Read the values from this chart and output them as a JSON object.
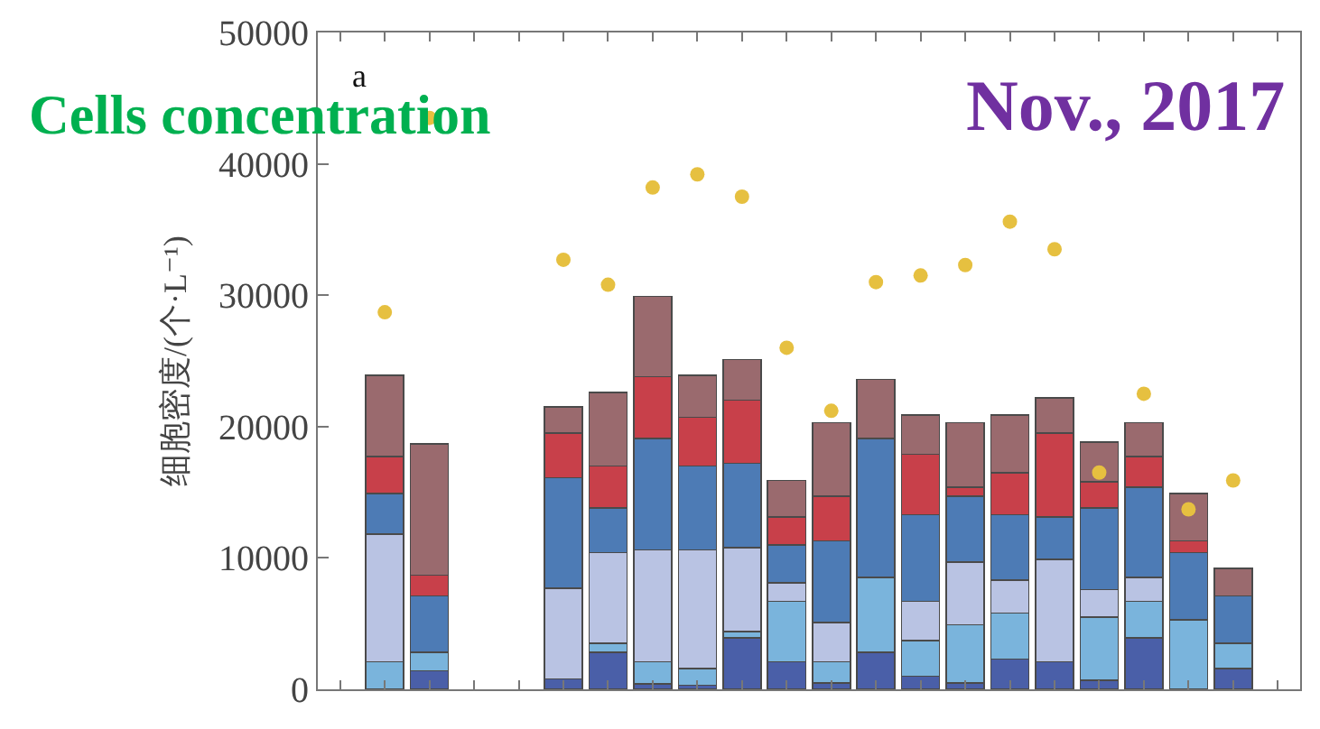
{
  "chart_data": {
    "type": "bar",
    "stacked": true,
    "ylabel": "细胞密度/(个·L⁻¹)",
    "annotations": [
      "a",
      "Cells concentration",
      "Nov., 2017"
    ],
    "categories": [
      null,
      null,
      null,
      null,
      null,
      null,
      null,
      null,
      null,
      null,
      null,
      null,
      null,
      null,
      null,
      null,
      null,
      null,
      null,
      null,
      null,
      null
    ],
    "ylim": [
      0,
      50000
    ],
    "yticks": [
      0,
      10000,
      20000,
      30000,
      40000,
      50000
    ],
    "tick_labels": "y",
    "series": [
      {
        "color": "#4a5fa8",
        "values": [
          null,
          null,
          1400,
          null,
          null,
          800,
          2800,
          400,
          300,
          3900,
          2100,
          500,
          2800,
          1000,
          500,
          2300,
          2100,
          700,
          3900,
          null,
          1600,
          null
        ]
      },
      {
        "color": "#7ab4dc",
        "values": [
          null,
          2100,
          1400,
          null,
          null,
          null,
          700,
          1700,
          1300,
          500,
          4600,
          1600,
          5700,
          2700,
          4400,
          3500,
          null,
          4800,
          2800,
          5300,
          1900,
          null
        ]
      },
      {
        "color": "#b9c3e3",
        "values": [
          null,
          9700,
          null,
          null,
          null,
          6900,
          6900,
          8500,
          9000,
          6400,
          1400,
          3000,
          null,
          3000,
          4800,
          2500,
          7800,
          2100,
          1800,
          null,
          null,
          null
        ]
      },
      {
        "color": "#4d7bb5",
        "values": [
          null,
          3100,
          4300,
          null,
          null,
          8400,
          3400,
          8500,
          6400,
          6400,
          2900,
          6200,
          10600,
          6600,
          5000,
          5000,
          3200,
          6200,
          6900,
          5100,
          3600,
          null
        ]
      },
      {
        "color": "#c8404a",
        "values": [
          null,
          2800,
          1600,
          null,
          null,
          3400,
          3200,
          4700,
          3700,
          4800,
          2100,
          3400,
          null,
          4600,
          700,
          3200,
          6400,
          2000,
          2300,
          900,
          null,
          null
        ]
      },
      {
        "color": "#9a6a6e",
        "values": [
          null,
          6200,
          10000,
          null,
          null,
          2000,
          5600,
          6100,
          3200,
          3100,
          2800,
          5600,
          4500,
          3000,
          4900,
          4400,
          2700,
          3000,
          2600,
          3600,
          2100,
          null
        ]
      },
      {
        "type": "scatter",
        "marker": "circle",
        "color": "#e6c040",
        "values": [
          null,
          28700,
          43500,
          null,
          null,
          32700,
          30800,
          38200,
          39200,
          37500,
          26000,
          21200,
          31000,
          31500,
          32300,
          35600,
          33500,
          16500,
          22500,
          13700,
          15900,
          null
        ]
      }
    ]
  }
}
